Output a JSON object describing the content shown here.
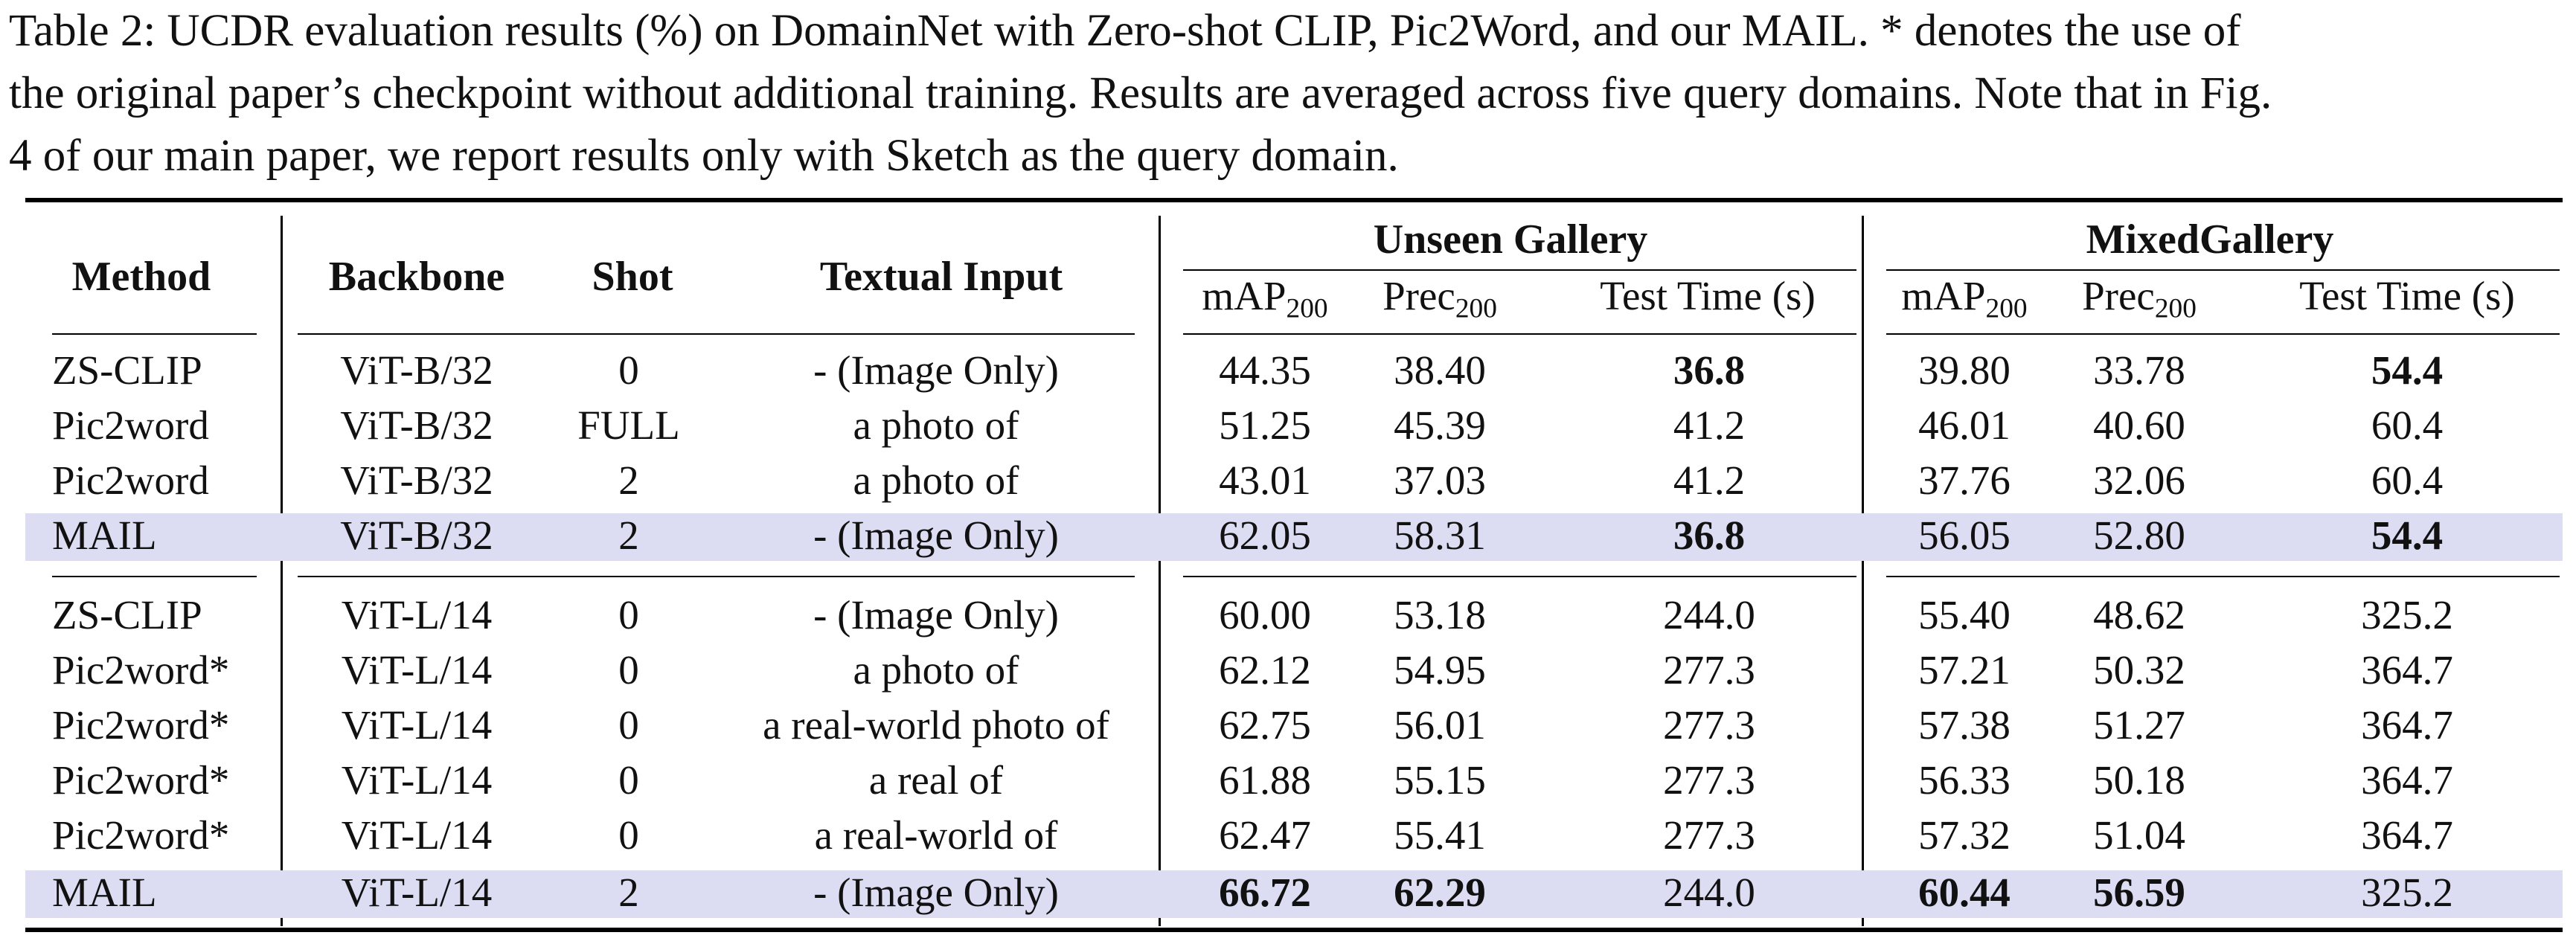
{
  "caption": {
    "lines": [
      "Table 2: UCDR evaluation results (%) on DomainNet with Zero-shot CLIP, Pic2Word, and our MAIL. * denotes the use of",
      "the original paper’s checkpoint without additional training. Results are averaged across five query domains. Note that in Fig.",
      "4 of our main paper, we report results only with Sketch as the query domain."
    ]
  },
  "table": {
    "headers": {
      "method": "Method",
      "backbone": "Backbone",
      "shot": "Shot",
      "textual_input": "Textual Input",
      "group_unseen": "Unseen Gallery",
      "group_mixed": "MixedGallery",
      "map_base": "mAP",
      "prec_base": "Prec",
      "subscript": "200",
      "test_time": "Test Time (s)"
    },
    "highlight_color": "#dcdcf2",
    "rows": [
      {
        "method": "ZS-CLIP",
        "backbone": "ViT-B/32",
        "shot": "0",
        "textual_input": "- (Image Only)",
        "u_map": "44.35",
        "u_prec": "38.40",
        "u_time": "36.8",
        "m_map": "39.80",
        "m_prec": "33.78",
        "m_time": "54.4",
        "bold": [
          "u_time",
          "m_time"
        ],
        "highlight": false
      },
      {
        "method": "Pic2word",
        "backbone": "ViT-B/32",
        "shot": "FULL",
        "textual_input": "a photo of",
        "u_map": "51.25",
        "u_prec": "45.39",
        "u_time": "41.2",
        "m_map": "46.01",
        "m_prec": "40.60",
        "m_time": "60.4",
        "bold": [],
        "highlight": false
      },
      {
        "method": "Pic2word",
        "backbone": "ViT-B/32",
        "shot": "2",
        "textual_input": "a photo of",
        "u_map": "43.01",
        "u_prec": "37.03",
        "u_time": "41.2",
        "m_map": "37.76",
        "m_prec": "32.06",
        "m_time": "60.4",
        "bold": [],
        "highlight": false
      },
      {
        "method": "MAIL",
        "backbone": "ViT-B/32",
        "shot": "2",
        "textual_input": "- (Image Only)",
        "u_map": "62.05",
        "u_prec": "58.31",
        "u_time": "36.8",
        "m_map": "56.05",
        "m_prec": "52.80",
        "m_time": "54.4",
        "bold": [
          "u_time",
          "m_time"
        ],
        "highlight": true
      },
      {
        "method": "ZS-CLIP",
        "backbone": "ViT-L/14",
        "shot": "0",
        "textual_input": "- (Image Only)",
        "u_map": "60.00",
        "u_prec": "53.18",
        "u_time": "244.0",
        "m_map": "55.40",
        "m_prec": "48.62",
        "m_time": "325.2",
        "bold": [],
        "highlight": false
      },
      {
        "method": "Pic2word*",
        "backbone": "ViT-L/14",
        "shot": "0",
        "textual_input": "a photo of",
        "u_map": "62.12",
        "u_prec": "54.95",
        "u_time": "277.3",
        "m_map": "57.21",
        "m_prec": "50.32",
        "m_time": "364.7",
        "bold": [],
        "highlight": false
      },
      {
        "method": "Pic2word*",
        "backbone": "ViT-L/14",
        "shot": "0",
        "textual_input": "a real-world photo of",
        "u_map": "62.75",
        "u_prec": "56.01",
        "u_time": "277.3",
        "m_map": "57.38",
        "m_prec": "51.27",
        "m_time": "364.7",
        "bold": [],
        "highlight": false
      },
      {
        "method": "Pic2word*",
        "backbone": "ViT-L/14",
        "shot": "0",
        "textual_input": "a real of",
        "u_map": "61.88",
        "u_prec": "55.15",
        "u_time": "277.3",
        "m_map": "56.33",
        "m_prec": "50.18",
        "m_time": "364.7",
        "bold": [],
        "highlight": false
      },
      {
        "method": "Pic2word*",
        "backbone": "ViT-L/14",
        "shot": "0",
        "textual_input": "a real-world of",
        "u_map": "62.47",
        "u_prec": "55.41",
        "u_time": "277.3",
        "m_map": "57.32",
        "m_prec": "51.04",
        "m_time": "364.7",
        "bold": [],
        "highlight": false
      },
      {
        "method": "MAIL",
        "backbone": "ViT-L/14",
        "shot": "2",
        "textual_input": "- (Image Only)",
        "u_map": "66.72",
        "u_prec": "62.29",
        "u_time": "244.0",
        "m_map": "60.44",
        "m_prec": "56.59",
        "m_time": "325.2",
        "bold": [
          "u_map",
          "u_prec",
          "m_map",
          "m_prec"
        ],
        "highlight": true
      }
    ]
  }
}
